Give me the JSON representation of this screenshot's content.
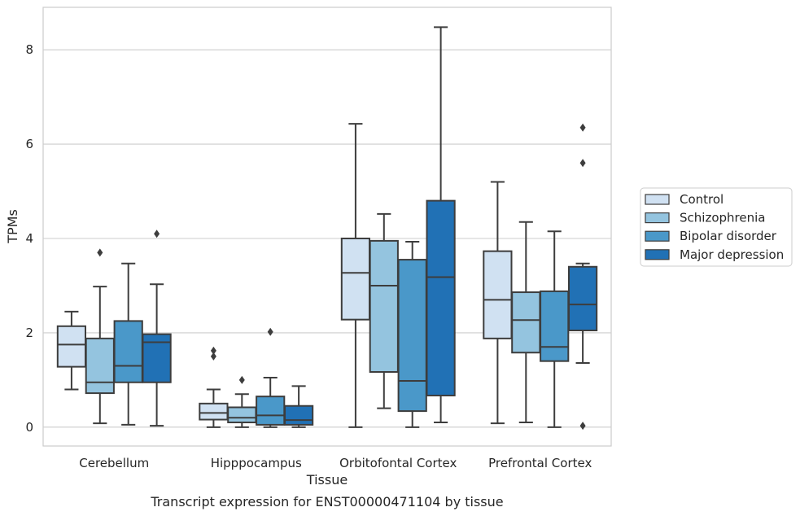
{
  "chart_data": {
    "type": "box",
    "xlabel": "Tissue",
    "ylabel": "TPMs",
    "caption": "Transcript expression for ENST00000471104 by tissue",
    "ylim": [
      -0.4,
      8.9
    ],
    "yticks": [
      0,
      2,
      4,
      6,
      8
    ],
    "grid": true,
    "legend_position": "right",
    "categories": [
      "Cerebellum",
      "Hipppocampus",
      "Orbitofontal Cortex",
      "Prefrontal Cortex"
    ],
    "series": [
      {
        "name": "Control",
        "color": "#d0e1f2",
        "boxes": [
          {
            "whisker_low": 0.8,
            "q1": 1.28,
            "median": 1.75,
            "q3": 2.14,
            "whisker_high": 2.45,
            "outliers": []
          },
          {
            "whisker_low": 0.0,
            "q1": 0.16,
            "median": 0.3,
            "q3": 0.5,
            "whisker_high": 0.8,
            "outliers": [
              1.5,
              1.62
            ]
          },
          {
            "whisker_low": 0.0,
            "q1": 2.28,
            "median": 3.27,
            "q3": 4.0,
            "whisker_high": 6.43,
            "outliers": []
          },
          {
            "whisker_low": 0.08,
            "q1": 1.88,
            "median": 2.7,
            "q3": 3.73,
            "whisker_high": 5.2,
            "outliers": []
          }
        ]
      },
      {
        "name": "Schizophrenia",
        "color": "#94c4df",
        "boxes": [
          {
            "whisker_low": 0.08,
            "q1": 0.72,
            "median": 0.95,
            "q3": 1.88,
            "whisker_high": 2.98,
            "outliers": [
              3.7
            ]
          },
          {
            "whisker_low": 0.0,
            "q1": 0.1,
            "median": 0.2,
            "q3": 0.42,
            "whisker_high": 0.7,
            "outliers": [
              1.0
            ]
          },
          {
            "whisker_low": 0.4,
            "q1": 1.17,
            "median": 3.0,
            "q3": 3.95,
            "whisker_high": 4.52,
            "outliers": []
          },
          {
            "whisker_low": 0.1,
            "q1": 1.58,
            "median": 2.27,
            "q3": 2.86,
            "whisker_high": 4.35,
            "outliers": []
          }
        ]
      },
      {
        "name": "Bipolar disorder",
        "color": "#4a98c9",
        "boxes": [
          {
            "whisker_low": 0.05,
            "q1": 0.95,
            "median": 1.3,
            "q3": 2.25,
            "whisker_high": 3.47,
            "outliers": []
          },
          {
            "whisker_low": 0.0,
            "q1": 0.05,
            "median": 0.25,
            "q3": 0.65,
            "whisker_high": 1.05,
            "outliers": [
              2.02
            ]
          },
          {
            "whisker_low": 0.0,
            "q1": 0.34,
            "median": 0.98,
            "q3": 3.55,
            "whisker_high": 3.93,
            "outliers": []
          },
          {
            "whisker_low": 0.0,
            "q1": 1.4,
            "median": 1.7,
            "q3": 2.88,
            "whisker_high": 4.15,
            "outliers": []
          }
        ]
      },
      {
        "name": "Major depression",
        "color": "#2171b5",
        "boxes": [
          {
            "whisker_low": 0.03,
            "q1": 0.95,
            "median": 1.8,
            "q3": 1.97,
            "whisker_high": 3.03,
            "outliers": [
              4.1
            ]
          },
          {
            "whisker_low": 0.0,
            "q1": 0.05,
            "median": 0.15,
            "q3": 0.45,
            "whisker_high": 0.87,
            "outliers": []
          },
          {
            "whisker_low": 0.1,
            "q1": 0.67,
            "median": 3.18,
            "q3": 4.8,
            "whisker_high": 8.48,
            "outliers": []
          },
          {
            "whisker_low": 1.36,
            "q1": 2.05,
            "median": 2.6,
            "q3": 3.4,
            "whisker_high": 3.47,
            "outliers": [
              0.03,
              5.6,
              6.35
            ]
          }
        ]
      }
    ]
  }
}
